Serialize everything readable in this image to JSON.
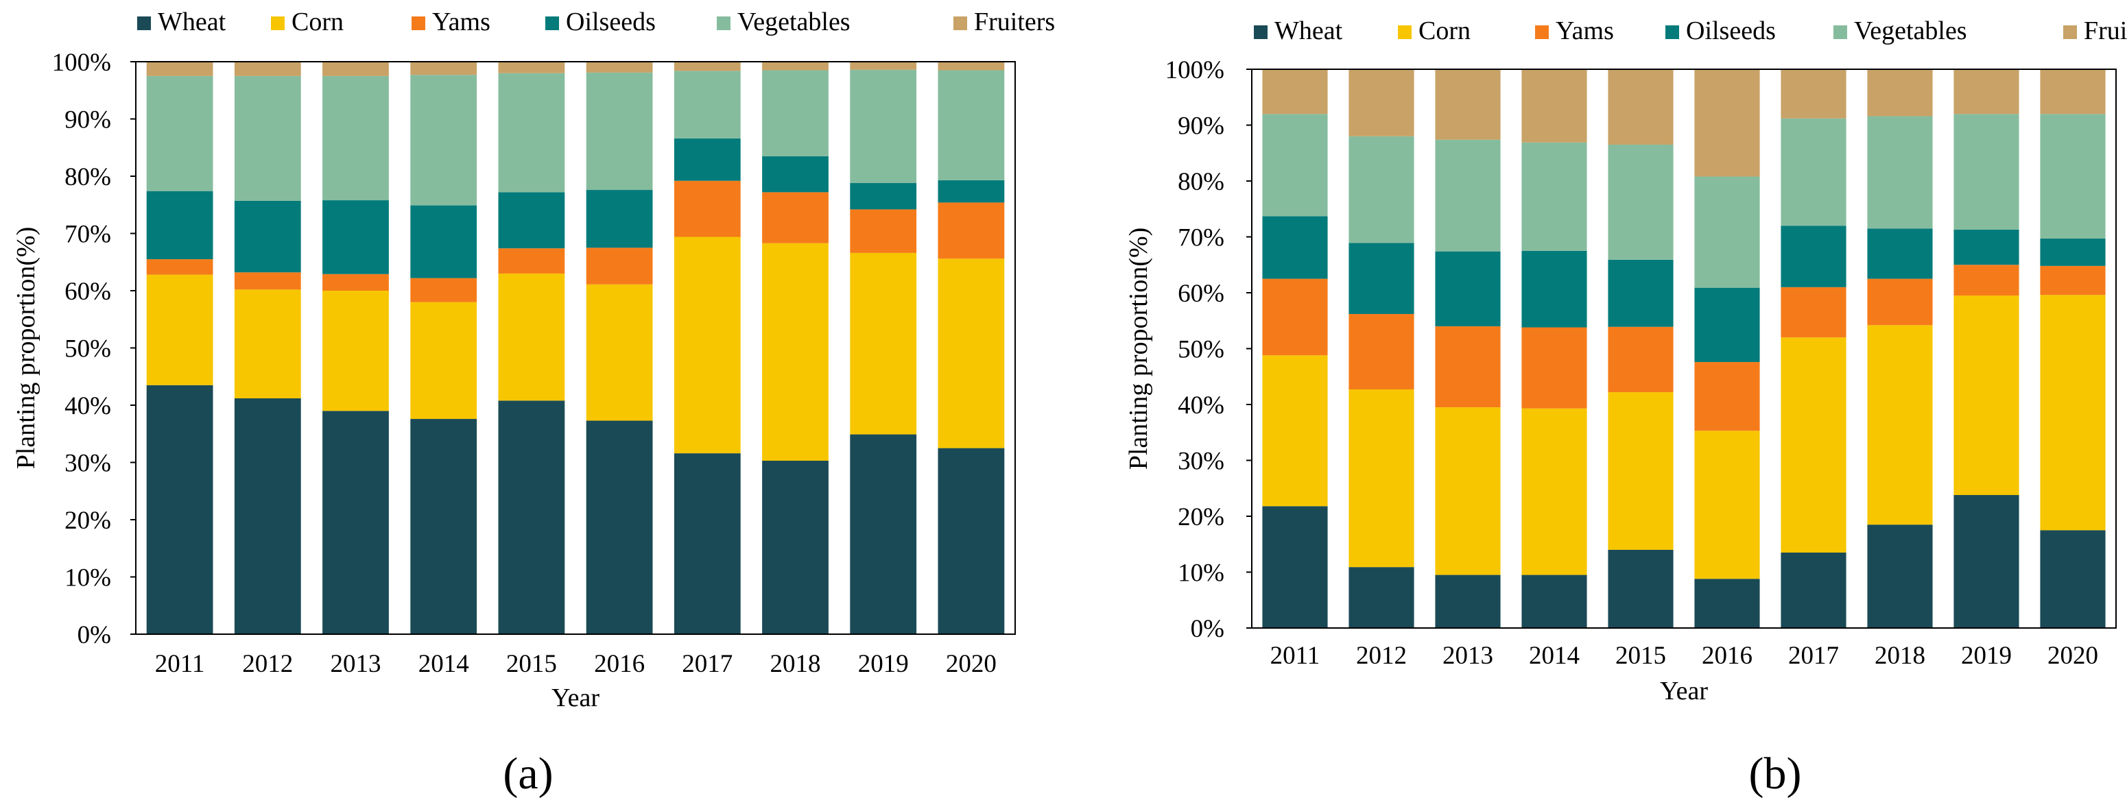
{
  "legend": [
    {
      "name": "Wheat",
      "color": "#1a4a56"
    },
    {
      "name": "Corn",
      "color": "#f7c600"
    },
    {
      "name": "Yams",
      "color": "#f57b1a"
    },
    {
      "name": "Oilseeds",
      "color": "#047b7b"
    },
    {
      "name": "Vegetables",
      "color": "#86bc9e"
    },
    {
      "name": "Fruiters",
      "color": "#c8a266"
    }
  ],
  "chart_data": [
    {
      "panel_label": "(a)",
      "type": "stacked_bar",
      "xlabel": "Year",
      "ylabel": "Planting proportion(%)",
      "ylim": [
        0,
        100
      ],
      "y_ticks": [
        "0%",
        "10%",
        "20%",
        "30%",
        "40%",
        "50%",
        "60%",
        "70%",
        "80%",
        "90%",
        "100%"
      ],
      "categories": [
        "2011",
        "2012",
        "2013",
        "2014",
        "2015",
        "2016",
        "2017",
        "2018",
        "2019",
        "2020"
      ],
      "series": [
        {
          "name": "Wheat",
          "values": [
            43.5,
            41.2,
            39.0,
            37.6,
            40.8,
            37.3,
            31.6,
            30.3,
            34.9,
            32.5
          ]
        },
        {
          "name": "Corn",
          "values": [
            19.3,
            19.0,
            21.0,
            20.4,
            22.2,
            23.8,
            37.8,
            38.0,
            31.7,
            33.1
          ]
        },
        {
          "name": "Yams",
          "values": [
            2.7,
            3.0,
            2.9,
            4.2,
            4.4,
            6.4,
            9.8,
            8.9,
            7.6,
            9.8
          ]
        },
        {
          "name": "Oilseeds",
          "values": [
            11.9,
            12.5,
            12.9,
            12.7,
            9.8,
            10.1,
            7.4,
            6.3,
            4.6,
            3.9
          ]
        },
        {
          "name": "Vegetables",
          "values": [
            20.1,
            21.8,
            21.7,
            22.8,
            20.8,
            20.5,
            11.8,
            15.0,
            19.8,
            19.2
          ]
        },
        {
          "name": "Fruiters",
          "values": [
            2.5,
            2.5,
            2.5,
            2.3,
            2.0,
            1.9,
            1.6,
            1.5,
            1.4,
            1.5
          ]
        }
      ]
    },
    {
      "panel_label": "(b)",
      "type": "stacked_bar",
      "xlabel": "Year",
      "ylabel": "Planting proportion(%)",
      "ylim": [
        0,
        100
      ],
      "y_ticks": [
        "0%",
        "10%",
        "20%",
        "30%",
        "40%",
        "50%",
        "60%",
        "70%",
        "80%",
        "90%",
        "100%"
      ],
      "categories": [
        "2011",
        "2012",
        "2013",
        "2014",
        "2015",
        "2016",
        "2017",
        "2018",
        "2019",
        "2020"
      ],
      "series": [
        {
          "name": "Wheat",
          "values": [
            21.8,
            10.9,
            9.5,
            9.5,
            14.0,
            8.8,
            13.5,
            18.5,
            23.8,
            17.5
          ]
        },
        {
          "name": "Corn",
          "values": [
            27.0,
            31.8,
            30.0,
            29.8,
            28.2,
            26.5,
            38.5,
            35.7,
            35.7,
            42.1
          ]
        },
        {
          "name": "Yams",
          "values": [
            13.7,
            13.5,
            14.5,
            14.5,
            11.7,
            12.3,
            9.0,
            8.3,
            5.5,
            5.2
          ]
        },
        {
          "name": "Oilseeds",
          "values": [
            11.2,
            12.7,
            13.4,
            13.7,
            12.0,
            13.3,
            11.0,
            9.0,
            6.3,
            4.9
          ]
        },
        {
          "name": "Vegetables",
          "values": [
            18.3,
            19.1,
            20.0,
            19.4,
            20.6,
            19.9,
            19.2,
            20.1,
            20.7,
            22.3
          ]
        },
        {
          "name": "Fruiters",
          "values": [
            8.0,
            12.0,
            12.6,
            13.1,
            13.5,
            19.2,
            8.8,
            8.4,
            8.0,
            8.0
          ]
        }
      ]
    }
  ]
}
